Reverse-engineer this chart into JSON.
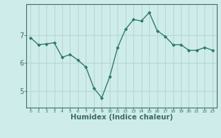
{
  "x": [
    0,
    1,
    2,
    3,
    4,
    5,
    6,
    7,
    8,
    9,
    10,
    11,
    12,
    13,
    14,
    15,
    16,
    17,
    18,
    19,
    20,
    21,
    22,
    23
  ],
  "y": [
    6.9,
    6.65,
    6.68,
    6.72,
    6.2,
    6.3,
    6.1,
    5.85,
    5.1,
    4.75,
    5.5,
    6.55,
    7.2,
    7.55,
    7.5,
    7.8,
    7.15,
    6.95,
    6.65,
    6.65,
    6.45,
    6.45,
    6.55,
    6.45
  ],
  "line_color": "#2d7a6a",
  "marker": "D",
  "marker_size": 2.2,
  "bg_color": "#ceecea",
  "grid_color": "#b8d8d5",
  "axis_color": "#3a6b65",
  "xlabel": "Humidex (Indice chaleur)",
  "xlabel_fontsize": 7.5,
  "ylabel_ticks": [
    5,
    6,
    7
  ],
  "xlim": [
    -0.5,
    23.5
  ],
  "ylim": [
    4.4,
    8.1
  ],
  "xtick_labels": [
    "0",
    "1",
    "2",
    "3",
    "4",
    "5",
    "6",
    "7",
    "8",
    "9",
    "10",
    "11",
    "12",
    "13",
    "14",
    "15",
    "16",
    "17",
    "18",
    "19",
    "20",
    "21",
    "22",
    "23"
  ]
}
